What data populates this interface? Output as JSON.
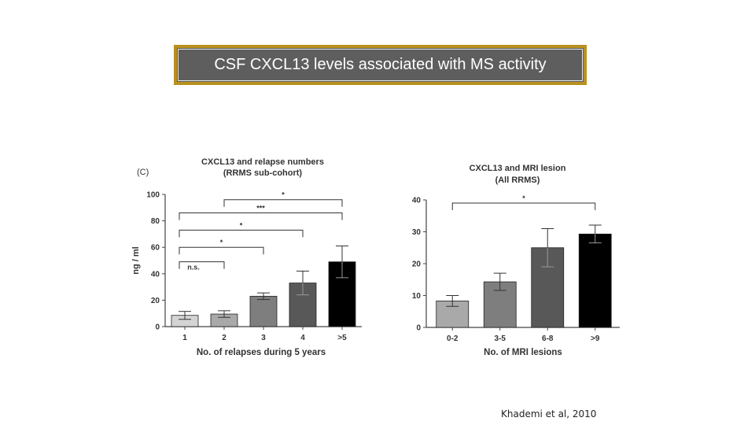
{
  "slide": {
    "title": "CSF CXCL13 levels associated with MS activity",
    "citation": "Khademi et al, 2010",
    "frame_color": "#b8901e",
    "title_bg": "#5e5e5e"
  },
  "chart_data": [
    {
      "type": "bar",
      "panel_label": "(C)",
      "title": "CXCL13 and relapse numbers",
      "subtitle": "(RRMS sub-cohort)",
      "xlabel": "No. of relapses during 5 years",
      "ylabel": "ng / ml",
      "categories": [
        "1",
        "2",
        "3",
        "4",
        ">5"
      ],
      "values": [
        8.5,
        9.5,
        23,
        33,
        49
      ],
      "errors": [
        3,
        2.5,
        2.5,
        9,
        12
      ],
      "colors": [
        "#d4d4d4",
        "#a9a9a9",
        "#7e7e7e",
        "#585858",
        "#000000"
      ],
      "ylim": [
        0,
        100
      ],
      "yticks": [
        0,
        20,
        40,
        60,
        80,
        100
      ],
      "significance": [
        {
          "from": 0,
          "to": 4,
          "y": 96,
          "label": "*"
        },
        {
          "from": 0,
          "to": 4,
          "y": 86,
          "label": "***"
        },
        {
          "from": 0,
          "to": 3,
          "y": 73,
          "label": "*"
        },
        {
          "from": 0,
          "to": 2,
          "y": 60,
          "label": "*"
        },
        {
          "from": 0,
          "to": 1,
          "y": 49,
          "label": "n.s."
        }
      ]
    },
    {
      "type": "bar",
      "title": "CXCL13 and MRI lesion",
      "subtitle": "(All RRMS)",
      "xlabel": "No. of MRI lesions",
      "ylabel": "",
      "categories": [
        "0-2",
        "3-5",
        "6-8",
        ">9"
      ],
      "values": [
        8.3,
        14.3,
        25,
        29.3
      ],
      "errors": [
        1.7,
        2.7,
        6,
        2.8
      ],
      "colors": [
        "#a9a9a9",
        "#7e7e7e",
        "#585858",
        "#000000"
      ],
      "ylim": [
        0,
        40
      ],
      "yticks": [
        0,
        10,
        20,
        30,
        40
      ],
      "significance": [
        {
          "from": 0,
          "to": 3,
          "y": 39,
          "label": "*"
        }
      ]
    }
  ]
}
